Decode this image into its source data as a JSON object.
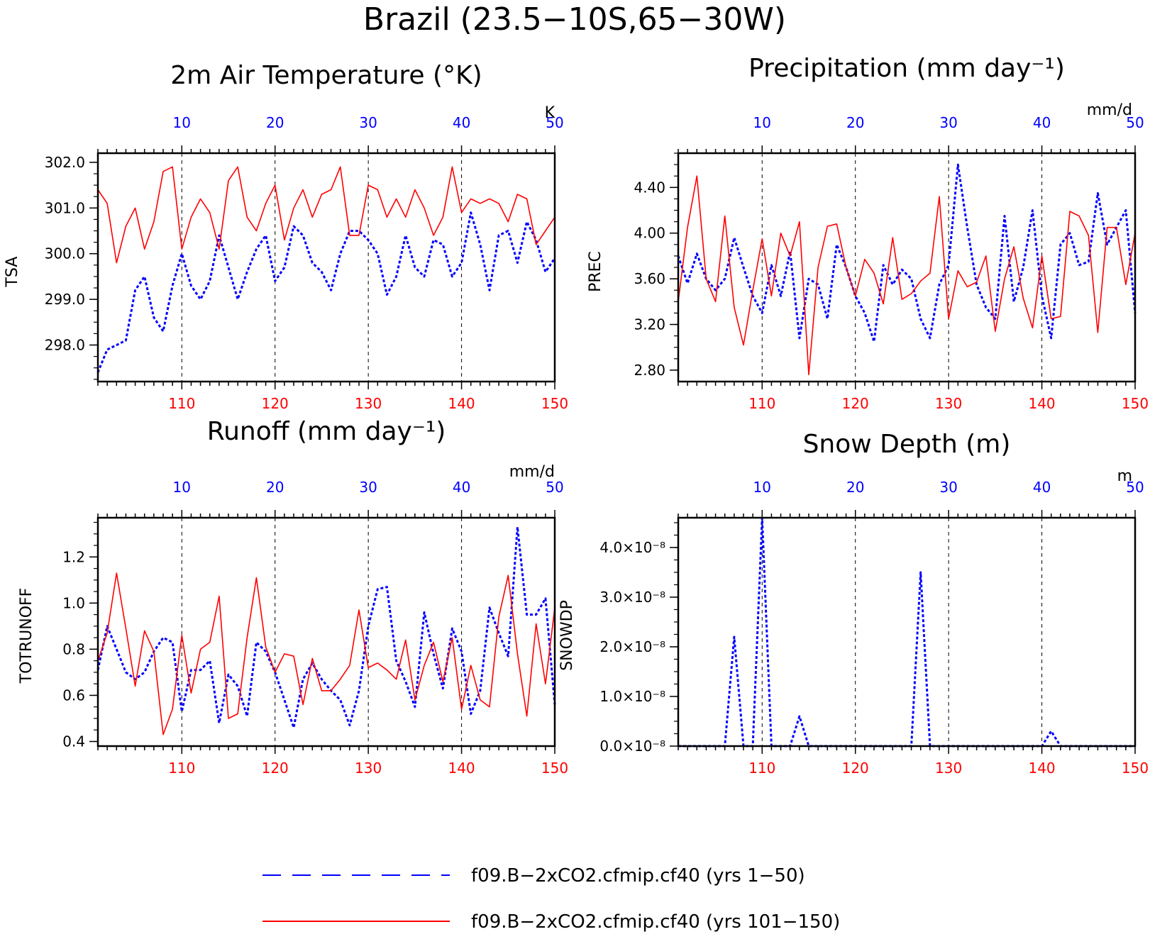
{
  "figure": {
    "title": "Brazil (23.5−10S,65−30W)",
    "colors": {
      "control": "#0000ff",
      "experiment": "#ff0000",
      "axis": "#000000"
    }
  },
  "legend": {
    "items": [
      {
        "label": "f09.B−2xCO2.cfmip.cf40 (yrs 1−50)",
        "color": "#0000ff",
        "style": "dashed"
      },
      {
        "label": "f09.B−2xCO2.cfmip.cf40 (yrs 101−150)",
        "color": "#ff0000",
        "style": "solid"
      }
    ]
  },
  "chart_data": [
    {
      "type": "line",
      "title": "2m Air Temperature (°K)",
      "ylabel": "TSA",
      "unit": "K",
      "ylim": [
        297.2,
        302.2
      ],
      "yticks": [
        "298.0",
        "299.0",
        "300.0",
        "301.0",
        "302.0"
      ],
      "xlim_bottom": [
        101,
        150
      ],
      "xticks_bottom": [
        110,
        120,
        130,
        140,
        150
      ],
      "xticks_top": [
        10,
        20,
        30,
        40,
        50
      ],
      "grid_x": [
        110,
        120,
        130,
        140
      ],
      "series": [
        {
          "name": "f09.B−2xCO2.cfmip.cf40 (yrs 1−50)",
          "color": "#0000ff",
          "axis": "top",
          "x": [
            1,
            2,
            3,
            4,
            5,
            6,
            7,
            8,
            9,
            10,
            11,
            12,
            13,
            14,
            15,
            16,
            17,
            18,
            19,
            20,
            21,
            22,
            23,
            24,
            25,
            26,
            27,
            28,
            29,
            30,
            31,
            32,
            33,
            34,
            35,
            36,
            37,
            38,
            39,
            40,
            41,
            42,
            43,
            44,
            45,
            46,
            47,
            48,
            49,
            50
          ],
          "values": [
            297.4,
            297.9,
            298.0,
            298.1,
            299.2,
            299.5,
            298.6,
            298.3,
            299.3,
            300.0,
            299.3,
            299.0,
            299.4,
            300.4,
            299.7,
            299.0,
            299.6,
            300.1,
            300.4,
            299.4,
            299.7,
            300.6,
            300.4,
            299.8,
            299.6,
            299.2,
            300.0,
            300.5,
            300.5,
            300.3,
            300.0,
            299.1,
            299.5,
            300.4,
            299.7,
            299.5,
            300.3,
            300.2,
            299.5,
            299.8,
            300.9,
            300.2,
            299.2,
            300.4,
            300.5,
            299.8,
            300.7,
            300.3,
            299.6,
            299.9
          ]
        },
        {
          "name": "f09.B−2xCO2.cfmip.cf40 (yrs 101−150)",
          "color": "#ff0000",
          "axis": "bottom",
          "x": [
            101,
            102,
            103,
            104,
            105,
            106,
            107,
            108,
            109,
            110,
            111,
            112,
            113,
            114,
            115,
            116,
            117,
            118,
            119,
            120,
            121,
            122,
            123,
            124,
            125,
            126,
            127,
            128,
            129,
            130,
            131,
            132,
            133,
            134,
            135,
            136,
            137,
            138,
            139,
            140,
            141,
            142,
            143,
            144,
            145,
            146,
            147,
            148,
            149,
            150
          ],
          "values": [
            301.4,
            301.1,
            299.8,
            300.6,
            301.0,
            300.1,
            300.7,
            301.8,
            301.9,
            300.1,
            300.8,
            301.2,
            300.9,
            300.1,
            301.6,
            301.9,
            300.8,
            300.5,
            301.1,
            301.5,
            300.3,
            301.0,
            301.4,
            300.8,
            301.3,
            301.4,
            301.9,
            300.4,
            300.4,
            301.5,
            301.4,
            300.8,
            301.2,
            300.8,
            301.4,
            301.0,
            300.4,
            300.8,
            301.9,
            300.9,
            301.2,
            301.1,
            301.2,
            301.1,
            300.7,
            301.3,
            301.2,
            300.2,
            300.5,
            300.8
          ]
        }
      ]
    },
    {
      "type": "line",
      "title": "Precipitation (mm day⁻¹)",
      "ylabel": "PREC",
      "unit": "mm/d",
      "ylim": [
        2.7,
        4.7
      ],
      "yticks": [
        "2.80",
        "3.20",
        "3.60",
        "4.00",
        "4.40"
      ],
      "xlim_bottom": [
        101,
        150
      ],
      "xticks_bottom": [
        110,
        120,
        130,
        140,
        150
      ],
      "xticks_top": [
        10,
        20,
        30,
        40,
        50
      ],
      "grid_x": [
        110,
        120,
        130,
        140
      ],
      "series": [
        {
          "name": "f09.B−2xCO2.cfmip.cf40 (yrs 1−50)",
          "color": "#0000ff",
          "axis": "top",
          "x": [
            1,
            2,
            3,
            4,
            5,
            6,
            7,
            8,
            9,
            10,
            11,
            12,
            13,
            14,
            15,
            16,
            17,
            18,
            19,
            20,
            21,
            22,
            23,
            24,
            25,
            26,
            27,
            28,
            29,
            30,
            31,
            32,
            33,
            34,
            35,
            36,
            37,
            38,
            39,
            40,
            41,
            42,
            43,
            44,
            45,
            46,
            47,
            48,
            49,
            50
          ],
          "values": [
            3.8,
            3.56,
            3.82,
            3.6,
            3.5,
            3.6,
            3.96,
            3.7,
            3.45,
            3.3,
            3.72,
            3.45,
            3.84,
            3.08,
            3.6,
            3.55,
            3.25,
            3.9,
            3.7,
            3.45,
            3.3,
            3.05,
            3.72,
            3.55,
            3.68,
            3.6,
            3.25,
            3.08,
            3.55,
            3.72,
            4.6,
            4.05,
            3.55,
            3.35,
            3.25,
            4.15,
            3.4,
            3.7,
            4.2,
            3.45,
            3.08,
            3.9,
            4.0,
            3.72,
            3.75,
            4.35,
            3.9,
            4.05,
            4.2,
            3.3
          ]
        },
        {
          "name": "f09.B−2xCO2.cfmip.cf40 (yrs 101−150)",
          "color": "#ff0000",
          "axis": "bottom",
          "x": [
            101,
            102,
            103,
            104,
            105,
            106,
            107,
            108,
            109,
            110,
            111,
            112,
            113,
            114,
            115,
            116,
            117,
            118,
            119,
            120,
            121,
            122,
            123,
            124,
            125,
            126,
            127,
            128,
            129,
            130,
            131,
            132,
            133,
            134,
            135,
            136,
            137,
            138,
            139,
            140,
            141,
            142,
            143,
            144,
            145,
            146,
            147,
            148,
            149,
            150
          ],
          "values": [
            3.4,
            4.05,
            4.5,
            3.6,
            3.4,
            4.15,
            3.35,
            3.02,
            3.5,
            3.95,
            3.45,
            4.0,
            3.8,
            4.1,
            2.76,
            3.7,
            4.06,
            4.08,
            3.7,
            3.45,
            3.77,
            3.65,
            3.38,
            3.96,
            3.42,
            3.47,
            3.58,
            3.65,
            4.32,
            3.25,
            3.67,
            3.53,
            3.57,
            3.8,
            3.14,
            3.6,
            3.88,
            3.43,
            3.17,
            3.8,
            3.25,
            3.27,
            4.19,
            4.15,
            3.98,
            3.13,
            4.05,
            4.05,
            3.55,
            4.0
          ]
        }
      ]
    },
    {
      "type": "line",
      "title": "Runoff (mm day⁻¹)",
      "ylabel": "TOTRUNOFF",
      "unit": "mm/d",
      "ylim": [
        0.38,
        1.37
      ],
      "yticks": [
        "0.4",
        "0.6",
        "0.8",
        "1.0",
        "1.2"
      ],
      "xlim_bottom": [
        101,
        150
      ],
      "xticks_bottom": [
        110,
        120,
        130,
        140,
        150
      ],
      "xticks_top": [
        10,
        20,
        30,
        40,
        50
      ],
      "grid_x": [
        110,
        120,
        130,
        140
      ],
      "series": [
        {
          "name": "f09.B−2xCO2.cfmip.cf40 (yrs 1−50)",
          "color": "#0000ff",
          "axis": "top",
          "x": [
            1,
            2,
            3,
            4,
            5,
            6,
            7,
            8,
            9,
            10,
            11,
            12,
            13,
            14,
            15,
            16,
            17,
            18,
            19,
            20,
            21,
            22,
            23,
            24,
            25,
            26,
            27,
            28,
            29,
            30,
            31,
            32,
            33,
            34,
            35,
            36,
            37,
            38,
            39,
            40,
            41,
            42,
            43,
            44,
            45,
            46,
            47,
            48,
            49,
            50
          ],
          "values": [
            0.71,
            0.9,
            0.8,
            0.7,
            0.67,
            0.7,
            0.79,
            0.85,
            0.83,
            0.53,
            0.71,
            0.71,
            0.75,
            0.48,
            0.69,
            0.64,
            0.51,
            0.83,
            0.79,
            0.7,
            0.58,
            0.46,
            0.67,
            0.74,
            0.67,
            0.62,
            0.58,
            0.47,
            0.62,
            0.9,
            1.06,
            1.07,
            0.75,
            0.66,
            0.55,
            0.96,
            0.78,
            0.63,
            0.89,
            0.79,
            0.52,
            0.62,
            0.98,
            0.87,
            0.77,
            1.33,
            0.95,
            0.95,
            1.02,
            0.56
          ]
        },
        {
          "name": "f09.B−2xCO2.cfmip.cf40 (yrs 101−150)",
          "color": "#ff0000",
          "axis": "bottom",
          "x": [
            101,
            102,
            103,
            104,
            105,
            106,
            107,
            108,
            109,
            110,
            111,
            112,
            113,
            114,
            115,
            116,
            117,
            118,
            119,
            120,
            121,
            122,
            123,
            124,
            125,
            126,
            127,
            128,
            129,
            130,
            131,
            132,
            133,
            134,
            135,
            136,
            137,
            138,
            139,
            140,
            141,
            142,
            143,
            144,
            145,
            146,
            147,
            148,
            149,
            150
          ],
          "values": [
            0.75,
            0.87,
            1.13,
            0.89,
            0.64,
            0.88,
            0.79,
            0.43,
            0.54,
            0.86,
            0.61,
            0.8,
            0.83,
            1.03,
            0.5,
            0.52,
            0.85,
            1.11,
            0.81,
            0.7,
            0.78,
            0.77,
            0.56,
            0.76,
            0.62,
            0.62,
            0.67,
            0.73,
            0.97,
            0.72,
            0.74,
            0.71,
            0.67,
            0.84,
            0.58,
            0.73,
            0.83,
            0.66,
            0.85,
            0.54,
            0.73,
            0.58,
            0.55,
            0.94,
            1.12,
            0.78,
            0.51,
            0.91,
            0.65,
            0.98
          ]
        }
      ]
    },
    {
      "type": "line",
      "title": "Snow Depth (m)",
      "ylabel": "SNOWDP",
      "unit": "m",
      "ylim": [
        0,
        4.6e-08
      ],
      "yticks": [
        "0.0×10⁻⁸",
        "1.0×10⁻⁸",
        "2.0×10⁻⁸",
        "3.0×10⁻⁸",
        "4.0×10⁻⁸"
      ],
      "xlim_bottom": [
        101,
        150
      ],
      "xticks_bottom": [
        110,
        120,
        130,
        140,
        150
      ],
      "xticks_top": [
        10,
        20,
        30,
        40,
        50
      ],
      "grid_x": [
        110,
        120,
        130,
        140
      ],
      "series": [
        {
          "name": "f09.B−2xCO2.cfmip.cf40 (yrs 1−50)",
          "color": "#0000ff",
          "axis": "top",
          "x": [
            1,
            2,
            3,
            4,
            5,
            6,
            7,
            8,
            9,
            10,
            11,
            12,
            13,
            14,
            15,
            16,
            17,
            18,
            19,
            20,
            21,
            22,
            23,
            24,
            25,
            26,
            27,
            28,
            29,
            30,
            31,
            32,
            33,
            34,
            35,
            36,
            37,
            38,
            39,
            40,
            41,
            42,
            43,
            44,
            45,
            46,
            47,
            48,
            49,
            50
          ],
          "values": [
            0,
            0,
            0,
            0,
            0,
            0,
            2.2e-08,
            0,
            0,
            4.6e-08,
            0,
            0,
            0,
            6e-09,
            0,
            0,
            0,
            0,
            0,
            0,
            0,
            0,
            0,
            0,
            0,
            0,
            3.5e-08,
            0,
            0,
            0,
            0,
            0,
            0,
            0,
            0,
            0,
            0,
            0,
            0,
            0,
            3e-09,
            0,
            0,
            0,
            0,
            0,
            0,
            0,
            0,
            0
          ]
        },
        {
          "name": "f09.B−2xCO2.cfmip.cf40 (yrs 101−150)",
          "color": "#ff0000",
          "axis": "bottom",
          "x": [
            101,
            102,
            103,
            104,
            105,
            106,
            107,
            108,
            109,
            110,
            111,
            112,
            113,
            114,
            115,
            116,
            117,
            118,
            119,
            120,
            121,
            122,
            123,
            124,
            125,
            126,
            127,
            128,
            129,
            130,
            131,
            132,
            133,
            134,
            135,
            136,
            137,
            138,
            139,
            140,
            141,
            142,
            143,
            144,
            145,
            146,
            147,
            148,
            149,
            150
          ],
          "values": [
            0,
            0,
            0,
            0,
            0,
            0,
            0,
            0,
            0,
            0,
            0,
            0,
            0,
            0,
            0,
            0,
            0,
            0,
            0,
            0,
            0,
            0,
            0,
            0,
            0,
            0,
            0,
            0,
            0,
            0,
            0,
            0,
            0,
            0,
            0,
            0,
            0,
            0,
            0,
            0,
            0,
            0,
            0,
            0,
            0,
            0,
            0,
            0,
            0,
            0
          ]
        }
      ]
    }
  ]
}
